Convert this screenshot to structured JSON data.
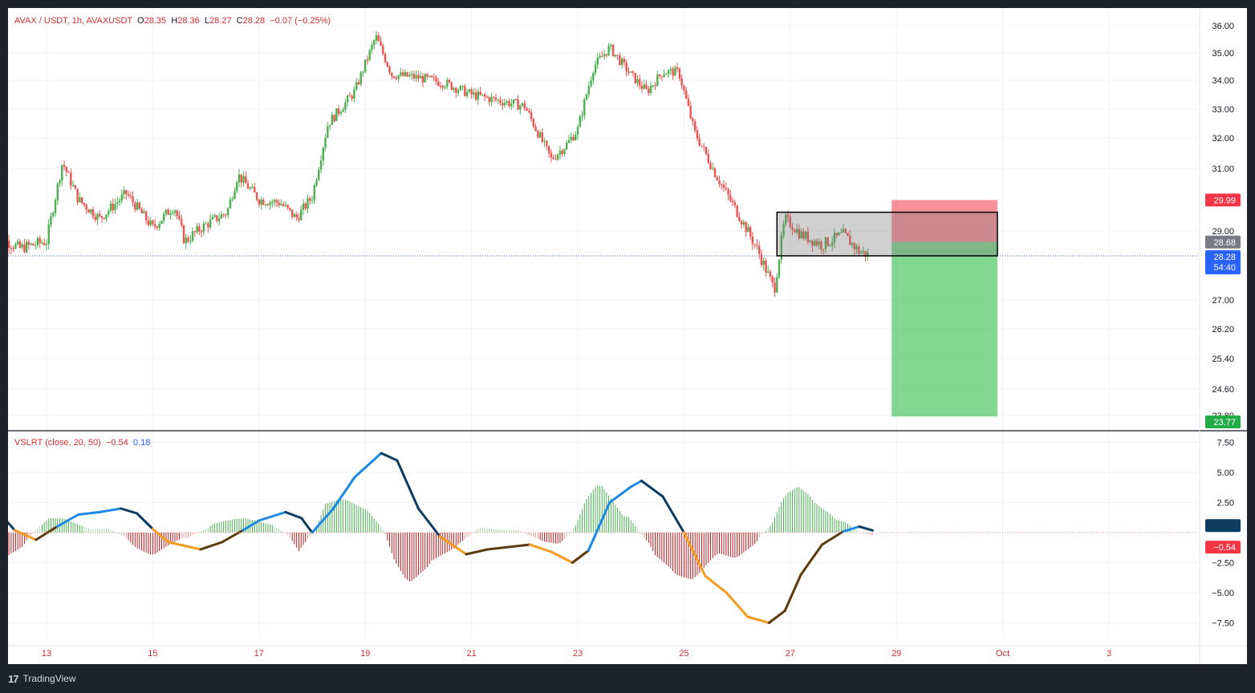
{
  "header": {
    "symbol": "AVAX / USDT, 1h, AVAXUSDT",
    "o_label": "O",
    "o_value": "28.35",
    "h_label": "H",
    "h_value": "28.36",
    "l_label": "L",
    "l_value": "28.27",
    "c_label": "C",
    "c_value": "28.28",
    "change": "−0.07 (−0.25%)"
  },
  "indicator": {
    "name": "VSLRT (close, 20, 50)",
    "value1": "−0.54",
    "value2": "0.18"
  },
  "footer": {
    "brand": "TradingView"
  },
  "colors": {
    "up": "#26a69a",
    "up_candle": "#4caf50",
    "down": "#ef5350",
    "line_blue": "#1e88e5",
    "line_dark": "#0d3c61",
    "line_orange": "#f59b1f",
    "line_brown": "#5d3a0c"
  },
  "chart_data": [
    {
      "type": "candlestick",
      "title": "AVAX / USDT, 1h, AVAXUSDT",
      "x_ticks": [
        "13",
        "15",
        "17",
        "19",
        "21",
        "23",
        "25",
        "27",
        "29",
        "Oct",
        "3"
      ],
      "y_ticks": [
        "36.00",
        "35.00",
        "34.00",
        "33.00",
        "32.00",
        "31.00",
        "29.00",
        "27.00",
        "26.20",
        "25.40",
        "24.60",
        "23.80"
      ],
      "ohlc_path": [
        [
          "12",
          28.9
        ],
        [
          "12.5",
          28.5
        ],
        [
          "13",
          28.7
        ],
        [
          "13.3",
          31.2
        ],
        [
          "13.6",
          30.0
        ],
        [
          "14",
          29.4
        ],
        [
          "14.5",
          30.2
        ],
        [
          "15",
          29.1
        ],
        [
          "15.4",
          29.8
        ],
        [
          "15.6",
          28.7
        ],
        [
          "16",
          29.2
        ],
        [
          "16.4",
          29.6
        ],
        [
          "16.6",
          30.8
        ],
        [
          "17",
          30.0
        ],
        [
          "17.4",
          29.9
        ],
        [
          "17.7",
          29.4
        ],
        [
          "18",
          30.1
        ],
        [
          "18.3",
          32.5
        ],
        [
          "18.8",
          33.6
        ],
        [
          "19.2",
          35.6
        ],
        [
          "19.5",
          34.2
        ],
        [
          "20",
          34.1
        ],
        [
          "20.5",
          33.9
        ],
        [
          "21",
          33.5
        ],
        [
          "21.5",
          33.3
        ],
        [
          "22",
          33.1
        ],
        [
          "22.3",
          32.0
        ],
        [
          "22.5",
          31.3
        ],
        [
          "22.8",
          31.8
        ],
        [
          "23",
          32.3
        ],
        [
          "23.3",
          34.5
        ],
        [
          "23.6",
          35.2
        ],
        [
          "24",
          34.2
        ],
        [
          "24.3",
          33.6
        ],
        [
          "24.6",
          34.3
        ],
        [
          "24.9",
          34.3
        ],
        [
          "25.2",
          32.2
        ],
        [
          "25.6",
          30.8
        ],
        [
          "26",
          29.6
        ],
        [
          "26.4",
          28.4
        ],
        [
          "26.7",
          27.3
        ],
        [
          "26.9",
          29.4
        ],
        [
          "27.2",
          28.9
        ],
        [
          "27.6",
          28.6
        ],
        [
          "28",
          28.9
        ],
        [
          "28.3",
          28.4
        ],
        [
          "28.5",
          28.3
        ]
      ],
      "current_price": 28.28,
      "countdown": "54:40",
      "price_labels": {
        "stop": "29.99",
        "entry": "28.68",
        "current": "28.28",
        "target": "23.77"
      },
      "position": {
        "entry": 28.68,
        "stop": 29.99,
        "target": 23.77
      },
      "box": {
        "top": 29.6,
        "bottom": 28.28
      }
    },
    {
      "type": "line+histogram",
      "title": "VSLRT (close, 20, 50)",
      "y_ticks": [
        "7.50",
        "5.00",
        "2.50",
        "−2.50",
        "−5.00",
        "−7.50"
      ],
      "ylim": [
        -8,
        8
      ],
      "line": [
        [
          "12",
          2.2
        ],
        [
          "12.4",
          0.2
        ],
        [
          "12.8",
          -0.6
        ],
        [
          "13.2",
          0.5
        ],
        [
          "13.6",
          1.5
        ],
        [
          "14",
          1.7
        ],
        [
          "14.4",
          2.0
        ],
        [
          "14.7",
          1.6
        ],
        [
          "15",
          0.3
        ],
        [
          "15.3",
          -0.8
        ],
        [
          "15.9",
          -1.4
        ],
        [
          "16.3",
          -0.8
        ],
        [
          "16.7",
          0.2
        ],
        [
          "17",
          1.0
        ],
        [
          "17.5",
          1.7
        ],
        [
          "17.8",
          1.2
        ],
        [
          "18",
          0.0
        ],
        [
          "18.4",
          2.0
        ],
        [
          "18.8",
          4.6
        ],
        [
          "19.3",
          6.6
        ],
        [
          "19.6",
          6.0
        ],
        [
          "20",
          2.0
        ],
        [
          "20.4",
          -0.3
        ],
        [
          "20.9",
          -1.8
        ],
        [
          "21.3",
          -1.4
        ],
        [
          "21.7",
          -1.2
        ],
        [
          "22.1",
          -1.0
        ],
        [
          "22.5",
          -1.6
        ],
        [
          "22.9",
          -2.5
        ],
        [
          "23.2",
          -1.5
        ],
        [
          "23.6",
          2.5
        ],
        [
          "24",
          3.8
        ],
        [
          "24.2",
          4.3
        ],
        [
          "24.6",
          3.0
        ],
        [
          "25",
          0.0
        ],
        [
          "25.4",
          -3.6
        ],
        [
          "25.8",
          -5.0
        ],
        [
          "26.2",
          -7.0
        ],
        [
          "26.6",
          -7.5
        ],
        [
          "26.9",
          -6.5
        ],
        [
          "27.2",
          -3.5
        ],
        [
          "27.6",
          -1.0
        ],
        [
          "28",
          0.1
        ],
        [
          "28.3",
          0.5
        ],
        [
          "28.55",
          0.18
        ]
      ],
      "histogram_note": "green bars above zero, red bars below zero"
    }
  ]
}
